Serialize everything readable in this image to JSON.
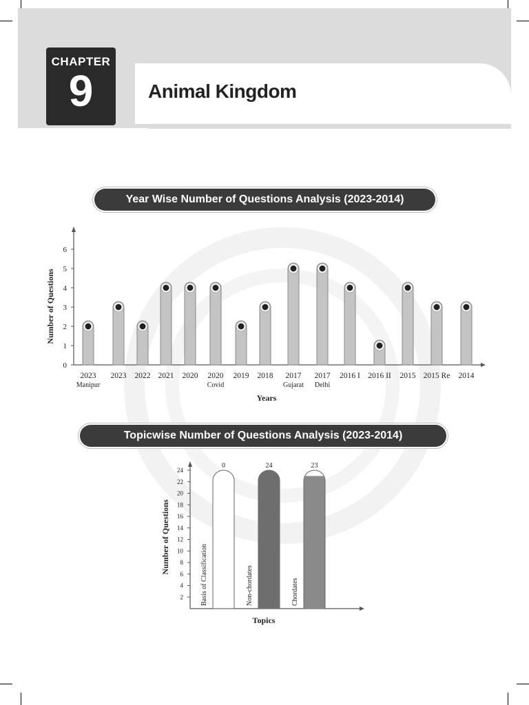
{
  "header": {
    "chapter_label": "CHAPTER",
    "chapter_number": "9",
    "title": "Animal Kingdom"
  },
  "chart_data": [
    {
      "type": "bar",
      "title": "Year Wise Number of Questions Analysis (2023-2014)",
      "xlabel": "Years",
      "ylabel": "Number of Questions",
      "categories": [
        [
          "2023",
          "Manipur"
        ],
        [
          "2023",
          ""
        ],
        [
          "2022",
          ""
        ],
        [
          "2021",
          ""
        ],
        [
          "2020",
          ""
        ],
        [
          "2020",
          "Covid"
        ],
        [
          "2019",
          ""
        ],
        [
          "2018",
          ""
        ],
        [
          "2017",
          "Gujarat"
        ],
        [
          "2017",
          "Delhi"
        ],
        [
          "2016 I",
          ""
        ],
        [
          "2016 II",
          ""
        ],
        [
          "2015",
          ""
        ],
        [
          "2015 Re",
          ""
        ],
        [
          "2014",
          ""
        ]
      ],
      "values": [
        2,
        3,
        2,
        4,
        4,
        4,
        2,
        3,
        5,
        5,
        4,
        1,
        4,
        3,
        3
      ],
      "yticks": [
        0,
        1,
        2,
        3,
        4,
        5,
        6
      ],
      "ylim": [
        0,
        6.5
      ],
      "grid": false,
      "bar_color": "#c4c4c4"
    },
    {
      "type": "bar",
      "title": "Topicwise Number of Questions Analysis (2023-2014)",
      "xlabel": "Topics",
      "ylabel": "Number of Questions",
      "categories": [
        "Basis of Classification",
        "Non-chordates",
        "Chordates"
      ],
      "values": [
        0,
        24,
        23
      ],
      "data_labels": [
        "0",
        "24",
        "23"
      ],
      "yticks": [
        2,
        4,
        6,
        8,
        10,
        12,
        14,
        16,
        18,
        20,
        22,
        24
      ],
      "ylim": [
        0,
        25
      ],
      "grid": false,
      "bar_color": "#8a8a8a"
    }
  ]
}
